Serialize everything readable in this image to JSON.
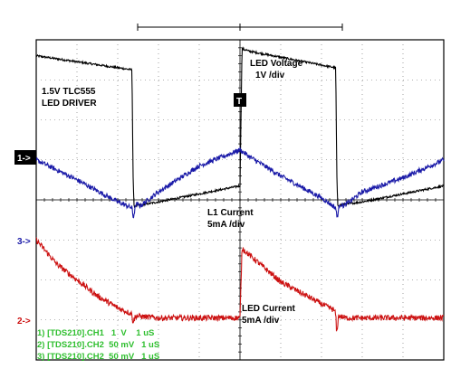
{
  "chart_data": {
    "type": "line",
    "x_unit": "divisions (1 uS/div)",
    "xlim": [
      0,
      10
    ],
    "ylim": [
      -4,
      4
    ],
    "grid": true,
    "annotations": {
      "driver_title": [
        "1.5V TLC555",
        "LED DRIVER"
      ],
      "led_voltage": [
        "LED Voltage",
        "1V /div"
      ],
      "l1_current": [
        "L1 Current",
        "5mA /div"
      ],
      "led_current": [
        "LED Current",
        "5mA /div"
      ],
      "trigger_marker": "T"
    },
    "channel_markers": [
      {
        "label": "1->",
        "color": "#ffffff",
        "bg": "#000000",
        "level": 1.75
      },
      {
        "label": "3->",
        "color": "#1a1aa8",
        "level": -0.95
      },
      {
        "label": "2->",
        "color": "#cc1111",
        "level": -2.95
      }
    ],
    "status_lines": [
      "1) [TDS210].CH1   1  V    1 uS",
      "2) [TDS210].CH2  50 mV   1 uS",
      "3) [TDS210].CH2  50 mV   1 uS"
    ],
    "status_color": "#2fbf2f",
    "series": [
      {
        "color": "#000000",
        "x": [
          0,
          2.35,
          2.36,
          2.37,
          2.38,
          2.4,
          2.45,
          2.5,
          3.0,
          4.0,
          5.0,
          5.05,
          5.1,
          5.15,
          5.2,
          7.35,
          7.36,
          7.37,
          7.38,
          7.4,
          7.5,
          8.0,
          9.0,
          10.0
        ],
        "y": [
          3.6,
          3.25,
          2.2,
          1.2,
          0.4,
          -0.15,
          -0.15,
          -0.14,
          -0.05,
          0.15,
          0.35,
          3.8,
          3.75,
          3.75,
          3.72,
          3.3,
          2.2,
          1.2,
          0.4,
          -0.15,
          -0.12,
          -0.05,
          0.15,
          0.35
        ],
        "noise": 0.025
      },
      {
        "color": "#1a1aa8",
        "x": [
          0,
          1.0,
          2.0,
          2.35,
          2.38,
          2.45,
          2.55,
          3.0,
          4.0,
          5.0,
          5.2,
          6.0,
          7.0,
          7.35,
          7.38,
          7.45,
          7.55,
          8.0,
          9.0,
          10.0
        ],
        "y": [
          1.0,
          0.5,
          -0.05,
          -0.2,
          -0.45,
          -0.1,
          -0.15,
          0.2,
          0.85,
          1.25,
          1.1,
          0.6,
          0.05,
          -0.2,
          -0.45,
          -0.1,
          -0.15,
          0.2,
          0.55,
          1.0
        ],
        "noise": 0.06
      },
      {
        "color": "#cc1111",
        "x": [
          0,
          0.5,
          1.5,
          2.0,
          2.35,
          2.37,
          2.45,
          3.0,
          4.0,
          5.0,
          5.05,
          5.1,
          5.2,
          5.6,
          6.0,
          7.0,
          7.3,
          7.35,
          7.37,
          7.42,
          7.6,
          8.0,
          9.0,
          10.0
        ],
        "y": [
          -1.0,
          -1.6,
          -2.4,
          -2.7,
          -2.85,
          -3.05,
          -2.9,
          -2.95,
          -2.95,
          -2.95,
          -1.2,
          -1.25,
          -1.35,
          -1.7,
          -2.05,
          -2.6,
          -2.75,
          -2.85,
          -3.35,
          -2.9,
          -2.95,
          -2.95,
          -2.95,
          -2.95
        ],
        "noise": 0.07
      }
    ]
  }
}
